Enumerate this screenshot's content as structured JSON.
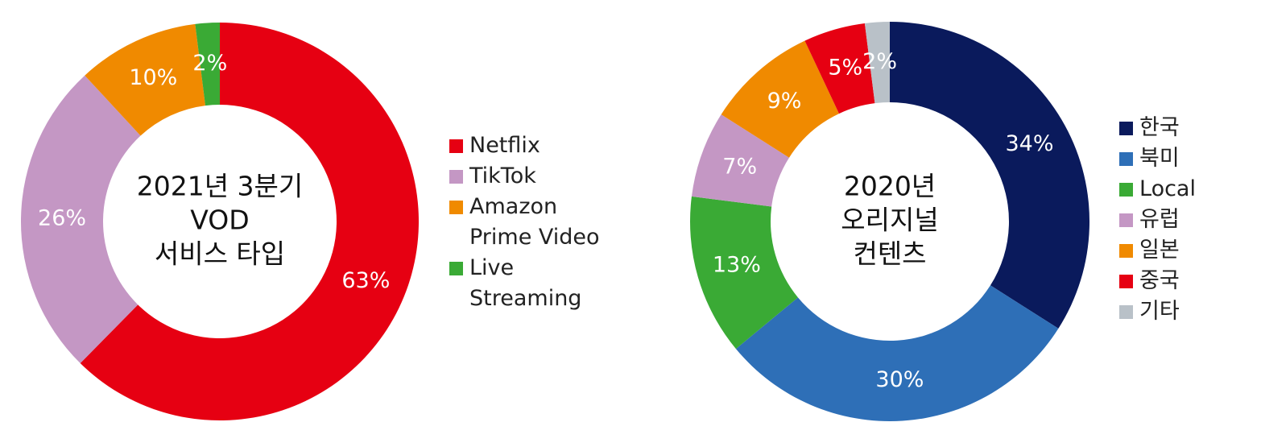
{
  "chart_data": [
    {
      "type": "pie",
      "donut": true,
      "title": [
        "2021년 3분기",
        "VOD",
        "서비스 타입"
      ],
      "categories": [
        "Netflix",
        "TikTok",
        "Amazon Prime Video",
        "Live Streaming"
      ],
      "values": [
        63,
        26,
        10,
        2
      ],
      "value_labels": [
        "63%",
        "26%",
        "10%",
        "2%"
      ],
      "colors": [
        "#e60012",
        "#c497c4",
        "#f08a00",
        "#3aaa35"
      ]
    },
    {
      "type": "pie",
      "donut": true,
      "title": [
        "2020년",
        "오리지널",
        "컨텐츠"
      ],
      "categories": [
        "한국",
        "북미",
        "Local",
        "유럽",
        "일본",
        "중국",
        "기타"
      ],
      "values": [
        34,
        30,
        13,
        7,
        9,
        5,
        2
      ],
      "value_labels": [
        "34%",
        "30%",
        "13%",
        "7%",
        "9%",
        "5%",
        "2%"
      ],
      "colors": [
        "#0a1a5c",
        "#2e6fb7",
        "#3aaa35",
        "#c497c4",
        "#f08a00",
        "#e60012",
        "#b9c1c8"
      ]
    }
  ]
}
